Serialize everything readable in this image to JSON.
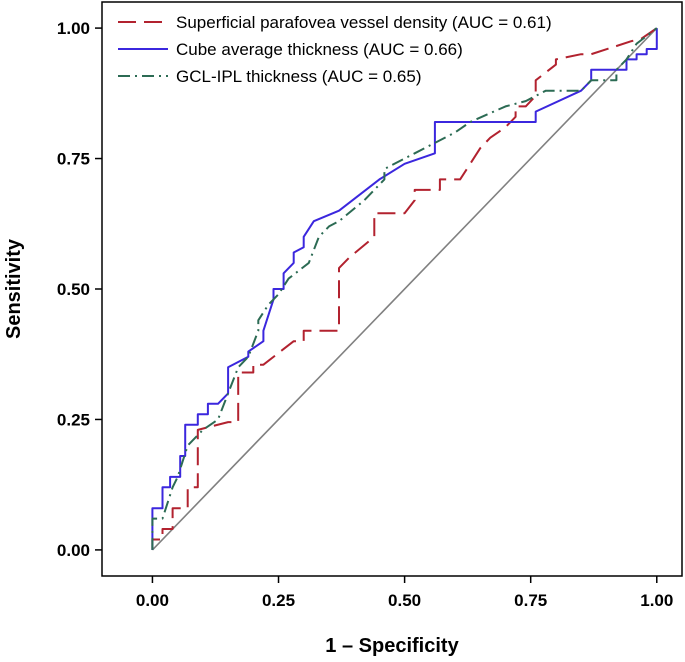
{
  "chart_data": {
    "type": "line",
    "title": "",
    "xlabel": "1 – Specificity",
    "ylabel": "Sensitivity",
    "xlim": [
      -0.1,
      1.05
    ],
    "ylim": [
      -0.05,
      1.05
    ],
    "xticks": [
      0.0,
      0.25,
      0.5,
      0.75,
      1.0
    ],
    "yticks": [
      0.0,
      0.25,
      0.5,
      0.75,
      1.0
    ],
    "xtick_labels": [
      "0.00",
      "0.25",
      "0.50",
      "0.75",
      "1.00"
    ],
    "ytick_labels": [
      "0.00",
      "0.25",
      "0.50",
      "0.75",
      "1.00"
    ],
    "grid": false,
    "legend_position": "top-left",
    "reference_line": {
      "x": [
        0,
        1
      ],
      "y": [
        0,
        1
      ],
      "color": "#808080"
    },
    "series": [
      {
        "name": "Superficial parafovea vessel density (AUC = 0.61)",
        "color": "#b2222f",
        "dash": "long-dash",
        "x": [
          0.0,
          0.0,
          0.02,
          0.02,
          0.04,
          0.04,
          0.07,
          0.07,
          0.09,
          0.09,
          0.15,
          0.17,
          0.17,
          0.2,
          0.2,
          0.22,
          0.28,
          0.3,
          0.3,
          0.33,
          0.37,
          0.37,
          0.39,
          0.44,
          0.44,
          0.5,
          0.52,
          0.52,
          0.57,
          0.57,
          0.61,
          0.63,
          0.65,
          0.67,
          0.7,
          0.72,
          0.72,
          0.74,
          0.76,
          0.76,
          0.8,
          0.8,
          0.85,
          0.87,
          0.95,
          0.97,
          0.97,
          1.0
        ],
        "y": [
          0.0,
          0.02,
          0.02,
          0.04,
          0.04,
          0.08,
          0.08,
          0.12,
          0.12,
          0.23,
          0.245,
          0.245,
          0.34,
          0.34,
          0.355,
          0.355,
          0.4,
          0.4,
          0.42,
          0.42,
          0.42,
          0.54,
          0.56,
          0.6,
          0.645,
          0.645,
          0.67,
          0.69,
          0.69,
          0.71,
          0.71,
          0.74,
          0.77,
          0.79,
          0.81,
          0.83,
          0.85,
          0.85,
          0.87,
          0.9,
          0.93,
          0.94,
          0.95,
          0.95,
          0.975,
          0.98,
          0.98,
          1.0
        ]
      },
      {
        "name": "Cube average thickness (AUC = 0.66)",
        "color": "#3b27de",
        "dash": "solid",
        "x": [
          0.0,
          0.0,
          0.02,
          0.02,
          0.035,
          0.035,
          0.055,
          0.055,
          0.065,
          0.065,
          0.09,
          0.09,
          0.11,
          0.11,
          0.13,
          0.15,
          0.15,
          0.19,
          0.19,
          0.22,
          0.22,
          0.24,
          0.24,
          0.26,
          0.26,
          0.28,
          0.28,
          0.3,
          0.3,
          0.32,
          0.37,
          0.45,
          0.5,
          0.56,
          0.56,
          0.61,
          0.63,
          0.76,
          0.76,
          0.85,
          0.87,
          0.87,
          0.94,
          0.94,
          0.96,
          0.96,
          0.98,
          0.98,
          1.0,
          1.0
        ],
        "y": [
          0.0,
          0.08,
          0.08,
          0.12,
          0.12,
          0.14,
          0.14,
          0.18,
          0.18,
          0.24,
          0.24,
          0.26,
          0.26,
          0.28,
          0.28,
          0.3,
          0.35,
          0.37,
          0.38,
          0.4,
          0.42,
          0.48,
          0.5,
          0.5,
          0.53,
          0.55,
          0.57,
          0.58,
          0.6,
          0.63,
          0.65,
          0.71,
          0.74,
          0.76,
          0.82,
          0.82,
          0.82,
          0.82,
          0.84,
          0.88,
          0.9,
          0.92,
          0.92,
          0.94,
          0.94,
          0.95,
          0.95,
          0.96,
          0.96,
          1.0
        ]
      },
      {
        "name": "GCL-IPL thickness (AUC = 0.65)",
        "color": "#2c6b54",
        "dash": "dash-dot",
        "x": [
          0.0,
          0.0,
          0.02,
          0.04,
          0.05,
          0.06,
          0.07,
          0.1,
          0.13,
          0.15,
          0.17,
          0.19,
          0.21,
          0.21,
          0.23,
          0.25,
          0.27,
          0.31,
          0.33,
          0.35,
          0.37,
          0.42,
          0.46,
          0.46,
          0.52,
          0.6,
          0.63,
          0.7,
          0.74,
          0.78,
          0.85,
          0.87,
          0.92,
          0.92,
          0.94,
          0.96,
          1.0
        ],
        "y": [
          0.0,
          0.06,
          0.06,
          0.12,
          0.14,
          0.17,
          0.2,
          0.23,
          0.25,
          0.3,
          0.35,
          0.37,
          0.42,
          0.44,
          0.47,
          0.49,
          0.52,
          0.55,
          0.6,
          0.62,
          0.63,
          0.67,
          0.71,
          0.73,
          0.76,
          0.8,
          0.82,
          0.85,
          0.86,
          0.88,
          0.88,
          0.9,
          0.9,
          0.92,
          0.94,
          0.97,
          1.0
        ]
      }
    ]
  }
}
